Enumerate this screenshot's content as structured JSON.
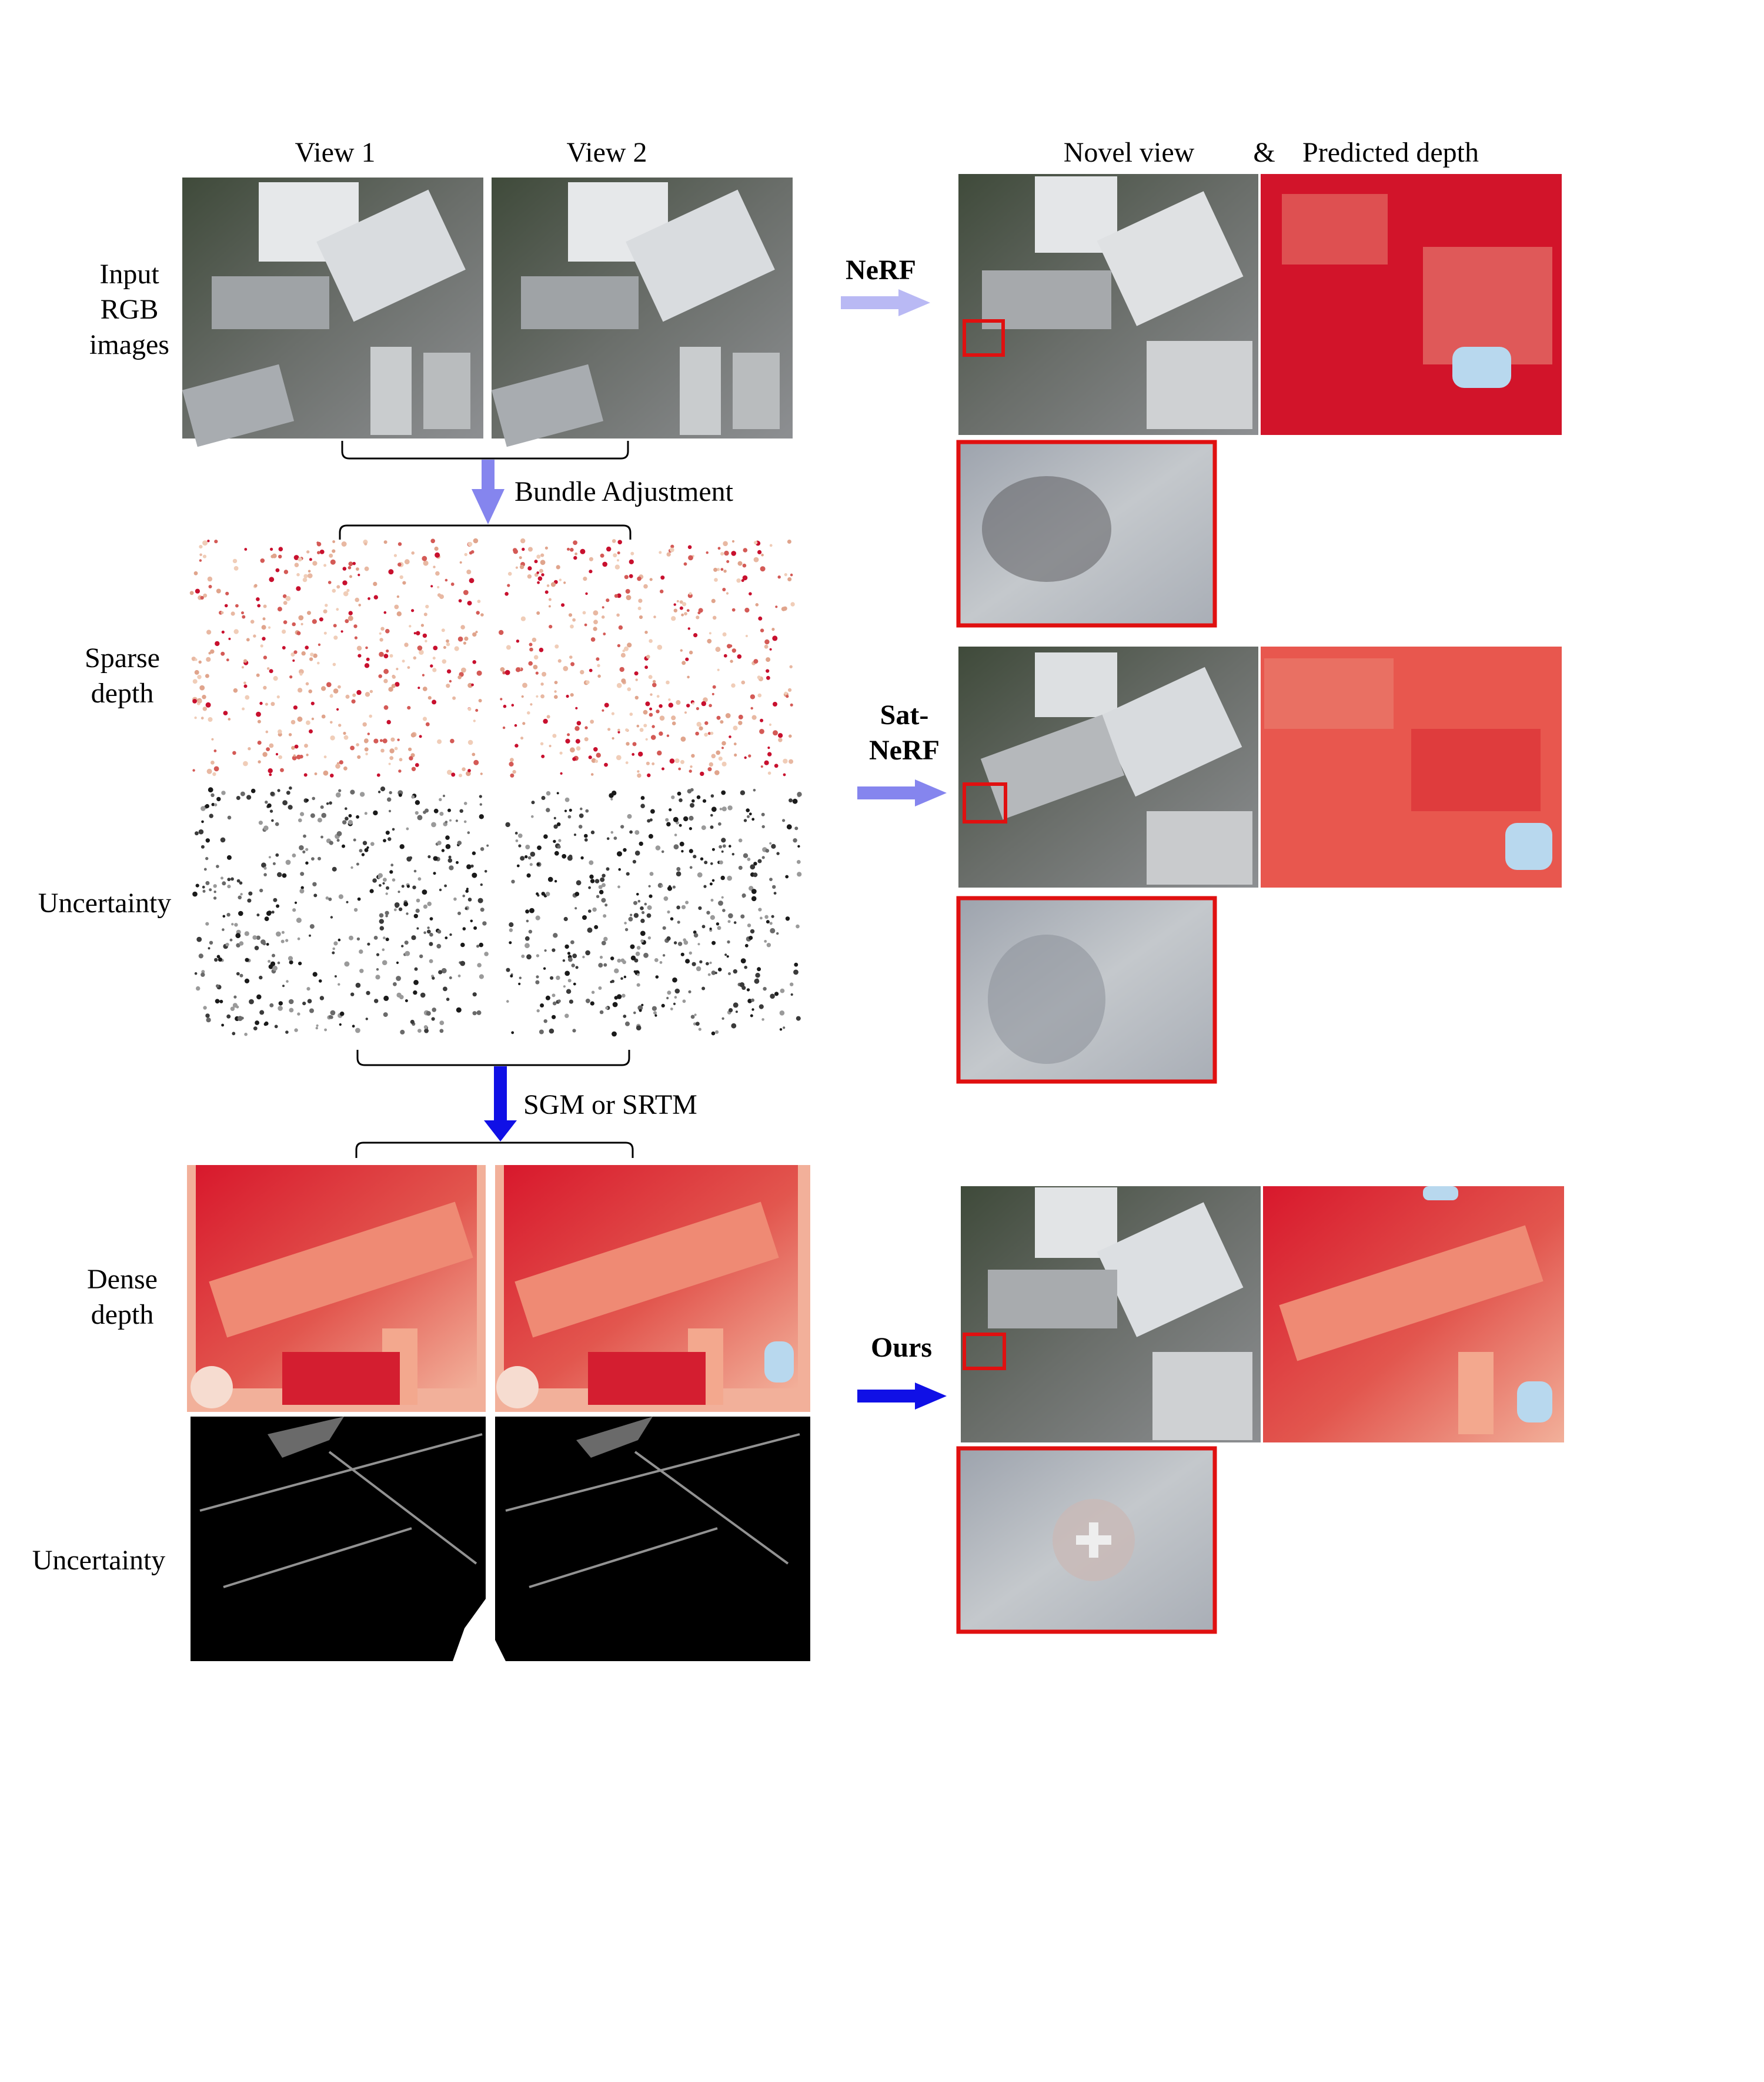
{
  "headers": {
    "view1": "View 1",
    "view2": "View 2",
    "novel_view": "Novel view",
    "ampersand": "&",
    "predicted_depth": "Predicted depth"
  },
  "row_labels": {
    "input_rgb": [
      "Input",
      "RGB",
      "images"
    ],
    "sparse_depth": [
      "Sparse",
      "depth"
    ],
    "uncertainty_sparse": "Uncertainty",
    "dense_depth": [
      "Dense",
      "depth"
    ],
    "uncertainty_dense": "Uncertainty"
  },
  "steps": {
    "bundle_adjustment": "Bundle Adjustment",
    "sgm_or_srtm": "SGM or SRTM"
  },
  "methods": {
    "nerf": "NeRF",
    "satnerf": [
      "Sat-",
      "NeRF"
    ],
    "ours": "Ours"
  },
  "colors": {
    "arrow_light": "#b9b9f4",
    "arrow_mid": "#8585ee",
    "arrow_dark": "#1010e6",
    "zoom_box": "#e01010",
    "depth_red": "#d2142a",
    "depth_salmon": "#f0a48a",
    "depth_blue": "#b8d8ee"
  },
  "icons": {
    "satellite_image": "aerial-photo",
    "depth_map": "heatmap",
    "uncertainty_map": "dark-noise-map",
    "sparse_points": "point-cloud"
  }
}
